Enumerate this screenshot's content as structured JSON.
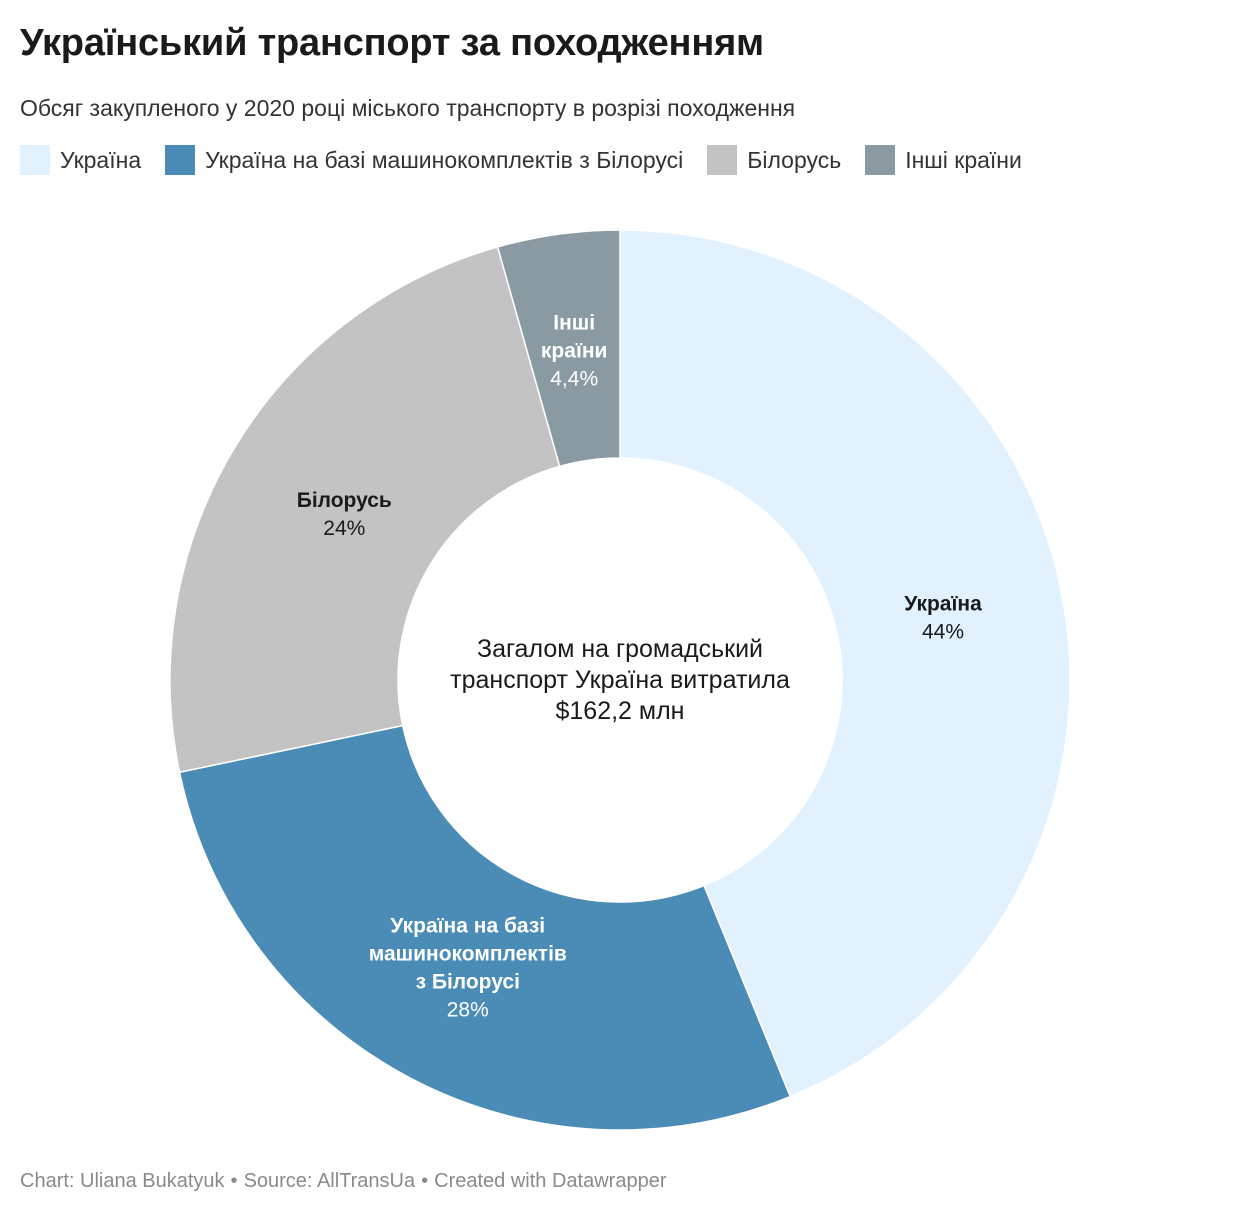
{
  "header": {
    "title": "Український транспорт за походженням",
    "subtitle": "Обсяг закупленого у 2020 році міського транспорту в розрізі походження"
  },
  "chart_data": {
    "type": "pie",
    "variant": "donut",
    "legend_position": "top",
    "center_text": [
      "Загалом на громадський",
      "транспорт Україна витратила",
      "$162,2 млн"
    ],
    "slices": [
      {
        "name": "Україна",
        "label_lines": [
          "Україна"
        ],
        "value": 44,
        "value_label": "44%",
        "color": "#e1f1fd",
        "label_color": "#1a1a1a"
      },
      {
        "name": "Україна на базі машинокомплектів з Білорусі",
        "label_lines": [
          "Україна на базі",
          "машинокомплектів",
          "з Білорусі"
        ],
        "value": 28,
        "value_label": "28%",
        "color": "#4a8cb6",
        "label_color": "#ffffff"
      },
      {
        "name": "Білорусь",
        "label_lines": [
          "Білорусь"
        ],
        "value": 24,
        "value_label": "24%",
        "color": "#c3c3c3",
        "label_color": "#1a1a1a"
      },
      {
        "name": "Інші країни",
        "label_lines": [
          "Інші",
          "країни"
        ],
        "value": 4.4,
        "value_label": "4,4%",
        "color": "#8a9aa3",
        "label_color": "#ffffff"
      }
    ]
  },
  "footer": {
    "chart_credit": "Chart: Uliana Bukatyuk",
    "source": "Source: AllTransUa",
    "created_with": "Created with Datawrapper",
    "separator": "•"
  }
}
